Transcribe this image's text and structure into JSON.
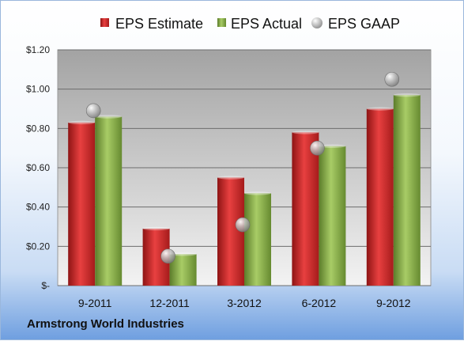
{
  "company": "Armstrong World Industries",
  "colors": {
    "estimate": "#d42a2a",
    "actual": "#8cb449",
    "gaap": "#a8a8a8",
    "plot_background_top": "#a6a6a6",
    "plot_background_bottom": "#f2f2f2"
  },
  "chart_data": {
    "type": "bar",
    "categories": [
      "9-2011",
      "12-2011",
      "3-2012",
      "6-2012",
      "9-2012"
    ],
    "series": [
      {
        "name": "EPS Estimate",
        "kind": "bar",
        "color": "#d42a2a",
        "values": [
          0.83,
          0.29,
          0.55,
          0.78,
          0.9
        ]
      },
      {
        "name": "EPS Actual",
        "kind": "bar",
        "color": "#8cb449",
        "values": [
          0.86,
          0.16,
          0.47,
          0.71,
          0.97
        ]
      },
      {
        "name": "EPS GAAP",
        "kind": "marker",
        "color": "#a8a8a8",
        "values": [
          0.89,
          0.15,
          0.31,
          0.7,
          1.05
        ]
      }
    ],
    "ylim": [
      0,
      1.2
    ],
    "yticks": [
      {
        "value": 0,
        "label": "$-"
      },
      {
        "value": 0.2,
        "label": "$0.20"
      },
      {
        "value": 0.4,
        "label": "$0.40"
      },
      {
        "value": 0.6,
        "label": "$0.60"
      },
      {
        "value": 0.8,
        "label": "$0.80"
      },
      {
        "value": 1.0,
        "label": "$1.00"
      },
      {
        "value": 1.2,
        "label": "$1.20"
      }
    ],
    "grid": true,
    "legend_position": "top"
  }
}
